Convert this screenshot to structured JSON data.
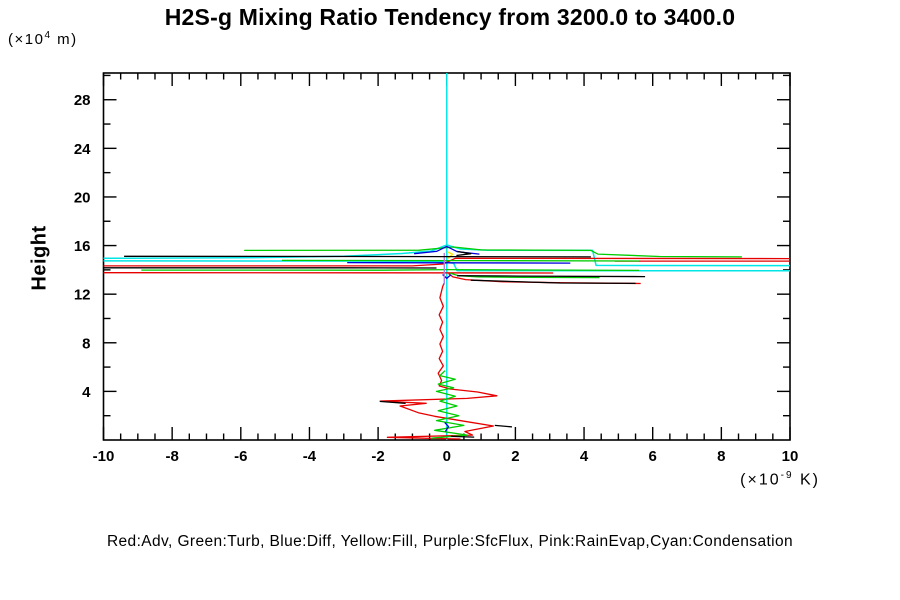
{
  "chart": {
    "title": "H2S-g Mixing Ratio Tendency from 3200.0 to 3400.0",
    "y_label": "Height",
    "y_unit_prefix": "(×10",
    "y_unit_exp": "4",
    "y_unit_suffix": " m)",
    "x_unit_prefix": "(×10",
    "x_unit_exp": "-9",
    "x_unit_suffix": " K)",
    "legend_text": "Red:Adv, Green:Turb, Blue:Diff, Yellow:Fill, Purple:SfcFlux, Pink:RainEvap,Cyan:Condensation"
  },
  "chart_data": {
    "type": "line",
    "title": "H2S-g Mixing Ratio Tendency from 3200.0 to 3400.0",
    "xlabel": "(×10^-9 K)",
    "ylabel": "Height (×10^4 m)",
    "xlim": [
      -10,
      10
    ],
    "ylim": [
      0,
      30.2
    ],
    "x_ticks": [
      -10,
      -8,
      -6,
      -4,
      -2,
      0,
      2,
      4,
      6,
      8,
      10
    ],
    "y_ticks": [
      4,
      8,
      12,
      16,
      20,
      24,
      28
    ],
    "x_minor_step": 0.5,
    "y_minor_step": 2,
    "grid": false,
    "legend_position": "bottom",
    "legend_entries": [
      {
        "color_name": "Red",
        "label": "Adv",
        "hex": "#e60000"
      },
      {
        "color_name": "Green",
        "label": "Turb",
        "hex": "#00cc00"
      },
      {
        "color_name": "Blue",
        "label": "Diff",
        "hex": "#0000dd"
      },
      {
        "color_name": "Yellow",
        "label": "Fill",
        "hex": "#ffe800"
      },
      {
        "color_name": "Purple",
        "label": "SfcFlux",
        "hex": "#b87ae0"
      },
      {
        "color_name": "Pink",
        "label": "RainEvap",
        "hex": "#ff9ec9"
      },
      {
        "color_name": "Cyan",
        "label": "Condensation",
        "hex": "#00e6e6"
      }
    ],
    "series": [
      {
        "name": "condensation",
        "color": "#00e6e6",
        "width": 1.5,
        "paths": [
          [
            [
              0,
              30.2
            ],
            [
              0,
              0
            ]
          ],
          [
            [
              -10,
              14.95
            ],
            [
              -6,
              14.99
            ],
            [
              -3,
              15.12
            ],
            [
              -1.3,
              15.35
            ],
            [
              -0.45,
              15.55
            ],
            [
              0,
              16.05
            ],
            [
              0.4,
              15.72
            ],
            [
              1.2,
              15.62
            ],
            [
              4.25,
              15.6
            ],
            [
              4.35,
              14.37
            ],
            [
              10,
              14.35
            ]
          ],
          [
            [
              -10,
              14.74
            ],
            [
              -4,
              14.73
            ],
            [
              -0.3,
              14.71
            ],
            [
              0.2,
              14.55
            ],
            [
              0.3,
              13.94
            ],
            [
              10,
              13.92
            ]
          ]
        ]
      },
      {
        "name": "adv",
        "color": "#e60000",
        "width": 1.3,
        "paths": [
          [
            [
              -10,
              14.33
            ],
            [
              -1,
              14.33
            ],
            [
              -0.1,
              14.48
            ],
            [
              0.25,
              14.95
            ],
            [
              10,
              14.93
            ]
          ],
          [
            [
              4.9,
              14.72
            ],
            [
              10,
              14.72
            ]
          ],
          [
            [
              -10,
              13.77
            ],
            [
              -2,
              13.76
            ],
            [
              3.1,
              13.74
            ]
          ],
          [
            [
              0.05,
              13.7
            ],
            [
              0.18,
              13.42
            ],
            [
              0.55,
              13.2
            ],
            [
              1.6,
              13.03
            ],
            [
              3.2,
              12.94
            ],
            [
              5.65,
              12.88
            ]
          ],
          [
            [
              -0.08,
              12.9
            ],
            [
              -0.12,
              12.6
            ],
            [
              -0.2,
              11.7
            ],
            [
              -0.1,
              11.0
            ],
            [
              -0.22,
              10.3
            ],
            [
              -0.12,
              9.7
            ],
            [
              -0.2,
              9.1
            ],
            [
              -0.1,
              8.5
            ],
            [
              -0.2,
              7.9
            ],
            [
              -0.12,
              7.3
            ],
            [
              -0.22,
              6.7
            ],
            [
              -0.1,
              6.1
            ],
            [
              -0.25,
              5.5
            ],
            [
              -0.15,
              4.9
            ],
            [
              -0.22,
              4.45
            ],
            [
              0.1,
              4.2
            ],
            [
              0.9,
              3.95
            ],
            [
              1.46,
              3.64
            ],
            [
              0.6,
              3.42
            ],
            [
              -1.94,
              3.2
            ],
            [
              -0.6,
              3.02
            ],
            [
              -1.36,
              2.8
            ],
            [
              -0.83,
              2.25
            ],
            [
              -0.35,
              1.95
            ],
            [
              0.5,
              1.55
            ],
            [
              1.36,
              1.15
            ],
            [
              0.53,
              0.7
            ],
            [
              0.75,
              0.4
            ],
            [
              -1.73,
              0.22
            ],
            [
              -0.3,
              0.12
            ],
            [
              0.4,
              0.08
            ]
          ]
        ]
      },
      {
        "name": "turb",
        "color": "#00cc00",
        "width": 1.3,
        "paths": [
          [
            [
              -5.9,
              15.6
            ],
            [
              -0.8,
              15.62
            ],
            [
              0.2,
              15.88
            ],
            [
              1.0,
              15.64
            ],
            [
              4.2,
              15.6
            ],
            [
              4.4,
              15.3
            ],
            [
              6.2,
              15.1
            ],
            [
              8.6,
              15.07
            ]
          ],
          [
            [
              -4.8,
              14.78
            ],
            [
              0.5,
              14.76
            ],
            [
              5.6,
              14.73
            ]
          ],
          [
            [
              -8.9,
              13.98
            ],
            [
              -2,
              13.97
            ],
            [
              0.1,
              14.02
            ],
            [
              2.5,
              13.99
            ],
            [
              5.6,
              13.96
            ]
          ],
          [
            [
              0.1,
              13.72
            ],
            [
              0.35,
              13.52
            ],
            [
              0.9,
              13.42
            ],
            [
              2.3,
              13.38
            ],
            [
              4.45,
              13.36
            ]
          ],
          [
            [
              -0.05,
              5.7
            ],
            [
              -0.2,
              5.3
            ],
            [
              0.25,
              5.0
            ],
            [
              -0.25,
              4.6
            ],
            [
              0.2,
              4.3
            ],
            [
              -0.3,
              4.0
            ],
            [
              0.25,
              3.6
            ],
            [
              -0.2,
              3.2
            ],
            [
              0.3,
              2.8
            ],
            [
              -0.25,
              2.4
            ],
            [
              0.35,
              2.0
            ],
            [
              -0.3,
              1.6
            ],
            [
              0.5,
              1.2
            ],
            [
              -0.35,
              0.8
            ],
            [
              0.6,
              0.4
            ],
            [
              -0.45,
              0.15
            ]
          ]
        ]
      },
      {
        "name": "diff",
        "color": "#0000dd",
        "width": 1.3,
        "paths": [
          [
            [
              -0.95,
              15.33
            ],
            [
              -0.3,
              15.52
            ],
            [
              0,
              15.93
            ],
            [
              0.3,
              15.5
            ],
            [
              0.95,
              15.3
            ]
          ],
          [
            [
              -2.9,
              14.6
            ],
            [
              0,
              14.58
            ],
            [
              3.6,
              14.56
            ]
          ],
          [
            [
              -0.12,
              13.62
            ],
            [
              0,
              13.3
            ],
            [
              0.12,
              13.6
            ]
          ],
          [
            [
              -0.06,
              1.45
            ],
            [
              0.05,
              1.1
            ],
            [
              -0.04,
              0.7
            ]
          ]
        ]
      },
      {
        "name": "fill",
        "color": "#ffe800",
        "width": 1.4,
        "paths": [
          [
            [
              0.02,
              15.48
            ],
            [
              0.17,
              15.28
            ],
            [
              0.07,
              15.05
            ],
            [
              0.02,
              14.92
            ]
          ]
        ]
      },
      {
        "name": "sfcflux",
        "color": "#b87ae0",
        "width": 1.4,
        "paths": [
          [
            [
              -0.07,
              15.4
            ],
            [
              -0.07,
              12.78
            ]
          ]
        ]
      },
      {
        "name": "rainevap",
        "color": "#ff9ec9",
        "width": 1.2,
        "paths": []
      },
      {
        "name": "black-overlay",
        "color": "#000000",
        "width": 1.3,
        "paths": [
          [
            [
              -10,
              14.17
            ],
            [
              -3,
              14.17
            ],
            [
              -0.3,
              14.15
            ]
          ],
          [
            [
              -9.4,
              15.12
            ],
            [
              -2,
              15.1
            ],
            [
              4.2,
              15.07
            ]
          ],
          [
            [
              0.3,
              15.52
            ],
            [
              0.7,
              15.33
            ],
            [
              0.28,
              15.18
            ]
          ],
          [
            [
              0.3,
              13.52
            ],
            [
              2.1,
              13.49
            ],
            [
              5.78,
              13.45
            ]
          ],
          [
            [
              0.7,
              13.15
            ],
            [
              3.3,
              12.92
            ],
            [
              5.5,
              12.89
            ]
          ],
          [
            [
              -1.95,
              3.18
            ],
            [
              -1.2,
              3.02
            ]
          ],
          [
            [
              1.4,
              1.2
            ],
            [
              1.9,
              1.08
            ]
          ],
          [
            [
              0.12,
              0.3
            ],
            [
              0.8,
              0.24
            ]
          ]
        ]
      }
    ]
  }
}
